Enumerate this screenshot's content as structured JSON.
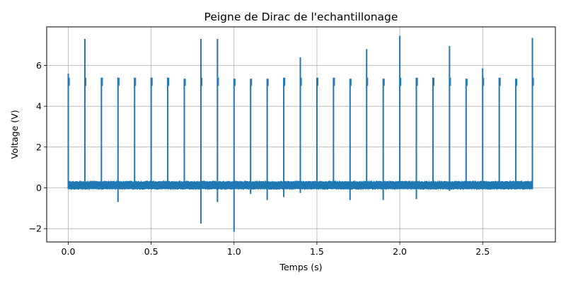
{
  "chart_data": {
    "type": "line",
    "title": "Peigne de Dirac de l'echantillonage",
    "xlabel": "Temps (s)",
    "ylabel": "Voltage (V)",
    "xlim": [
      -0.14,
      2.8
    ],
    "ylim": [
      -2.6,
      7.8
    ],
    "xticks": [
      0.0,
      0.5,
      1.0,
      1.5,
      2.0,
      2.5
    ],
    "xtick_labels": [
      "0.0",
      "0.5",
      "1.0",
      "1.5",
      "2.0",
      "2.5"
    ],
    "yticks": [
      -2,
      0,
      2,
      4,
      6
    ],
    "ytick_labels": [
      "−2",
      "0",
      "2",
      "4",
      "6"
    ],
    "grid": true,
    "color": "#1f77b4",
    "baseline": {
      "x_start": 0.0,
      "x_end": 2.8,
      "low": -0.05,
      "high": 0.3
    },
    "series": [
      {
        "pulses": [
          {
            "x": 0.0,
            "y": 5.6,
            "min": -0.05
          },
          {
            "x": 0.1,
            "y": 7.3,
            "min": -0.05
          },
          {
            "x": 0.2,
            "y": 5.4,
            "min": -0.05
          },
          {
            "x": 0.3,
            "y": 5.4,
            "min": -0.7
          },
          {
            "x": 0.4,
            "y": 5.4,
            "min": -0.05
          },
          {
            "x": 0.5,
            "y": 5.4,
            "min": -0.05
          },
          {
            "x": 0.6,
            "y": 5.4,
            "min": -0.05
          },
          {
            "x": 0.7,
            "y": 5.35,
            "min": -0.05
          },
          {
            "x": 0.8,
            "y": 7.3,
            "min": -1.75
          },
          {
            "x": 0.9,
            "y": 7.3,
            "min": -0.7
          },
          {
            "x": 1.0,
            "y": 5.35,
            "min": -2.15
          },
          {
            "x": 1.1,
            "y": 5.35,
            "min": -0.3
          },
          {
            "x": 1.2,
            "y": 5.35,
            "min": -0.6
          },
          {
            "x": 1.3,
            "y": 5.4,
            "min": -0.45
          },
          {
            "x": 1.4,
            "y": 6.4,
            "min": -0.25
          },
          {
            "x": 1.5,
            "y": 5.4,
            "min": -0.05
          },
          {
            "x": 1.6,
            "y": 5.4,
            "min": -0.05
          },
          {
            "x": 1.7,
            "y": 5.35,
            "min": -0.6
          },
          {
            "x": 1.8,
            "y": 6.8,
            "min": -0.05
          },
          {
            "x": 1.9,
            "y": 5.35,
            "min": -0.6
          },
          {
            "x": 2.0,
            "y": 7.45,
            "min": -0.05
          },
          {
            "x": 2.1,
            "y": 5.4,
            "min": -0.55
          },
          {
            "x": 2.2,
            "y": 5.4,
            "min": -0.05
          },
          {
            "x": 2.3,
            "y": 6.95,
            "min": -0.15
          },
          {
            "x": 2.4,
            "y": 5.35,
            "min": -0.05
          },
          {
            "x": 2.5,
            "y": 5.85,
            "min": -0.05
          },
          {
            "x": 2.6,
            "y": 5.4,
            "min": -0.05
          },
          {
            "x": 2.7,
            "y": 5.35,
            "min": -0.05
          },
          {
            "x": 2.8,
            "y": 7.35,
            "min": -0.05
          }
        ]
      }
    ]
  }
}
